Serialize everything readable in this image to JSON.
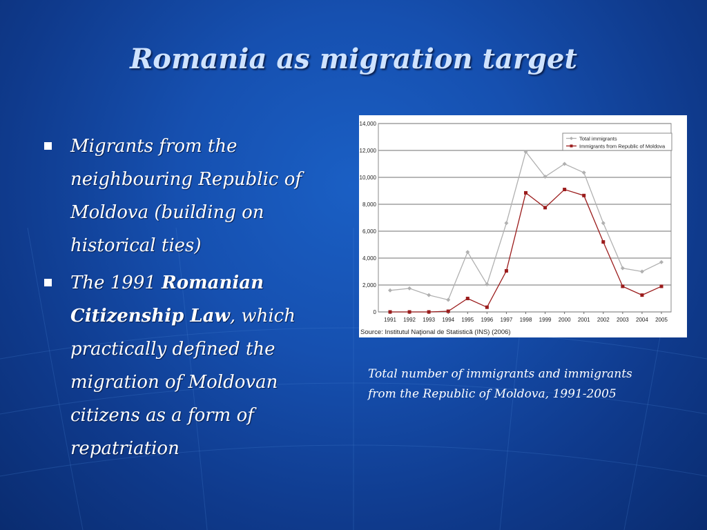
{
  "slide": {
    "title": "Romania as migration target",
    "bullets": [
      {
        "text": "Migrants from the neighbouring Republic of Moldova (building on historical ties)"
      },
      {
        "pre": "The 1991 ",
        "bold": "Romanian Citizenship Law",
        "post": ", which practically defined the migration of Moldovan citizens as a form of repatriation"
      }
    ],
    "caption": "Total number of immigrants and immigrants from the Republic of Moldova, 1991-2005"
  },
  "chart_data": {
    "type": "line",
    "x": [
      "1991",
      "1992",
      "1993",
      "1994",
      "1995",
      "1996",
      "1997",
      "1998",
      "1999",
      "2000",
      "2001",
      "2002",
      "2003",
      "2004",
      "2005"
    ],
    "ylim": [
      0,
      14000
    ],
    "y_ticks": [
      "0",
      "2,000",
      "4,000",
      "6,000",
      "8,000",
      "10,000",
      "12,000",
      "14,000"
    ],
    "y_tick_values": [
      0,
      2000,
      4000,
      6000,
      8000,
      10000,
      12000,
      14000
    ],
    "grid": true,
    "legend_position": "top-right",
    "source": "Source: Institutul Naţional de Statistică (INS) (2006)",
    "series": [
      {
        "name": "Total immigrants",
        "color": "#b0b0b0",
        "marker": "diamond",
        "values": [
          1600,
          1750,
          1250,
          900,
          4450,
          2050,
          6600,
          11900,
          10050,
          11000,
          10350,
          6600,
          3250,
          3000,
          3700
        ]
      },
      {
        "name": "Immigrants from Republic of Moldova",
        "color": "#9b1c1c",
        "marker": "square",
        "values": [
          0,
          0,
          0,
          50,
          1000,
          350,
          3050,
          8850,
          7750,
          9100,
          8650,
          5200,
          1900,
          1250,
          1900
        ]
      }
    ]
  }
}
